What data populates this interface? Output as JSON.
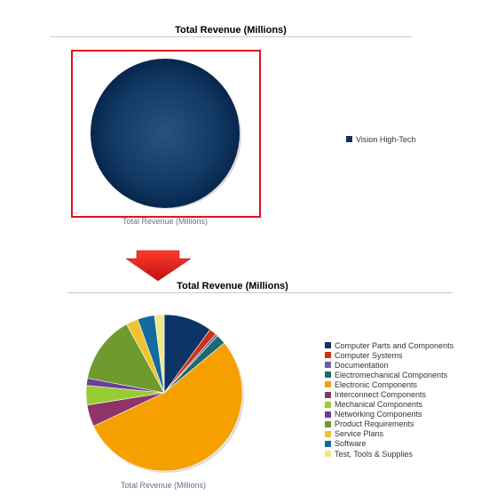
{
  "colors": {
    "highlight": "#e2121f",
    "arrow": "#e3161a"
  },
  "chart_data": [
    {
      "type": "pie",
      "title": "Total Revenue (Millions)",
      "caption": "Total Revenue (Millions)",
      "slices": [
        {
          "name": "Vision High-Tech",
          "value": 100,
          "color": "#0c3366"
        }
      ],
      "legend_position": "right"
    },
    {
      "type": "pie",
      "title": "Total Revenue (Millions)",
      "caption": "Total Revenue (Millions)",
      "slices": [
        {
          "name": "Computer Parts and Components",
          "value": 10.0,
          "color": "#0c3366"
        },
        {
          "name": "Computer Systems",
          "value": 1.5,
          "color": "#cc3311"
        },
        {
          "name": "Documentation",
          "value": 0.5,
          "color": "#6a5ea8"
        },
        {
          "name": "Electromechanical Components",
          "value": 2.0,
          "color": "#1a6b6e"
        },
        {
          "name": "Electronic Components",
          "value": 54.0,
          "color": "#f5a000"
        },
        {
          "name": "Interconnect Components",
          "value": 4.5,
          "color": "#8c3566"
        },
        {
          "name": "Mechanical Components",
          "value": 4.0,
          "color": "#99cc33"
        },
        {
          "name": "Networking Components",
          "value": 1.5,
          "color": "#6b3f95"
        },
        {
          "name": "Product Requirements",
          "value": 14.0,
          "color": "#6f9a2e"
        },
        {
          "name": "Service Plans",
          "value": 2.5,
          "color": "#f2c12e"
        },
        {
          "name": "Software",
          "value": 3.5,
          "color": "#136a9f"
        },
        {
          "name": "Test, Tools & Supplies",
          "value": 2.0,
          "color": "#f0e68c"
        }
      ],
      "legend_position": "right"
    }
  ]
}
